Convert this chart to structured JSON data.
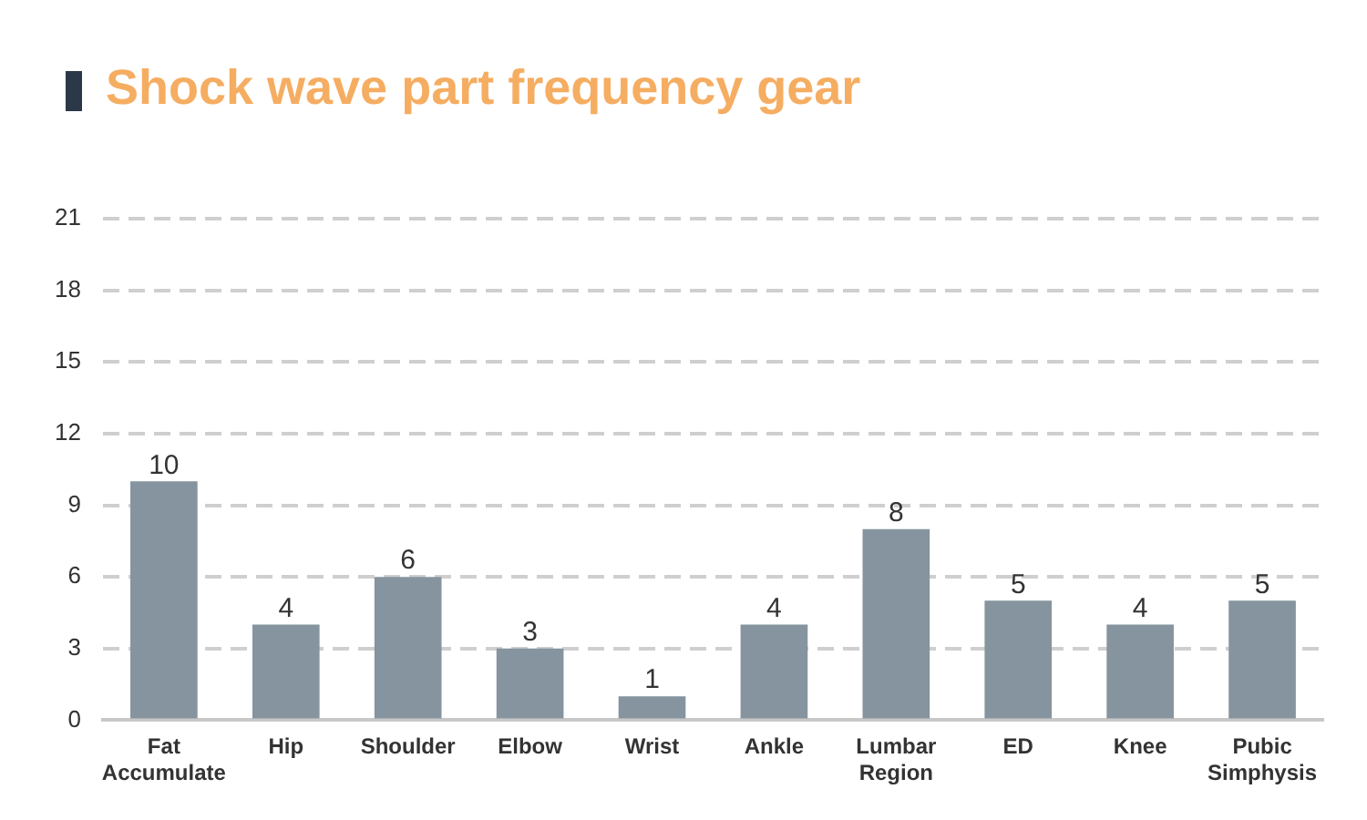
{
  "chart_data": {
    "type": "bar",
    "title": "Shock wave part frequency gear",
    "categories": [
      "Fat Accumulate",
      "Hip",
      "Shoulder",
      "Elbow",
      "Wrist",
      "Ankle",
      "Lumbar Region",
      "ED",
      "Knee",
      "Pubic Simphysis"
    ],
    "values": [
      10,
      4,
      6,
      3,
      1,
      4,
      8,
      5,
      4,
      5
    ],
    "color": "#85949e",
    "ylim": [
      0,
      21
    ],
    "yticks": [
      0,
      3,
      6,
      9,
      12,
      15,
      18,
      21
    ],
    "grid": "y",
    "data_labels": true
  }
}
